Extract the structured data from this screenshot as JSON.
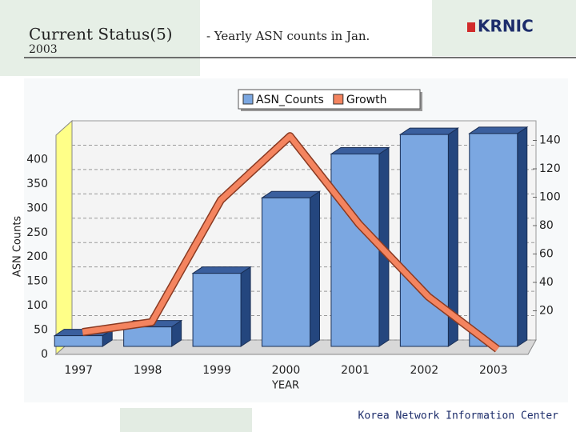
{
  "header": {
    "title": "Current Status(5)",
    "year": "2003",
    "subtitle": "- Yearly ASN counts in Jan.",
    "logo": "KRNIC"
  },
  "footer": "Korea Network Information Center",
  "chart_data": {
    "type": "bar",
    "categories": [
      "1997",
      "1998",
      "1999",
      "2000",
      "2001",
      "2002",
      "2003"
    ],
    "series": [
      {
        "name": "ASN_Counts",
        "color": "#7ba7e1",
        "values": [
          22,
          40,
          150,
          305,
          395,
          435,
          437
        ]
      },
      {
        "name": "Growth",
        "color": "#f4845f",
        "type": "line",
        "axis": "y2",
        "values": [
          5,
          12,
          98,
          143,
          81,
          30,
          -7
        ]
      }
    ],
    "ylabel": "ASN Counts",
    "xlabel": "YEAR",
    "ylim": [
      0,
      450
    ],
    "yticks": [
      0,
      50,
      100,
      150,
      200,
      250,
      300,
      350,
      400
    ],
    "y2lim": [
      0,
      150
    ],
    "y2ticks": [
      20,
      40,
      60,
      80,
      100,
      120,
      140
    ],
    "grid": true
  }
}
